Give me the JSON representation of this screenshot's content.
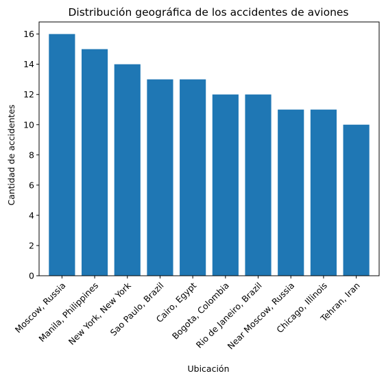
{
  "chart_data": {
    "type": "bar",
    "title": "Distribución geográfica de los accidentes de aviones",
    "xlabel": "Ubicación",
    "ylabel": "Cantidad de accidentes",
    "categories": [
      "Moscow, Russia",
      "Manila, Philippines",
      "New York, New York",
      "Sao Paulo, Brazil",
      "Cairo, Egypt",
      "Bogota, Colombia",
      "Rio de Janeiro, Brazil",
      "Near Moscow, Russia",
      "Chicago, Illinois",
      "Tehran, Iran"
    ],
    "values": [
      16,
      15,
      14,
      13,
      13,
      12,
      12,
      11,
      11,
      10
    ],
    "ylim": [
      0,
      16.8
    ],
    "yticks": [
      0,
      2,
      4,
      6,
      8,
      10,
      12,
      14,
      16
    ],
    "grid": false,
    "bar_color": "#1f77b4"
  }
}
